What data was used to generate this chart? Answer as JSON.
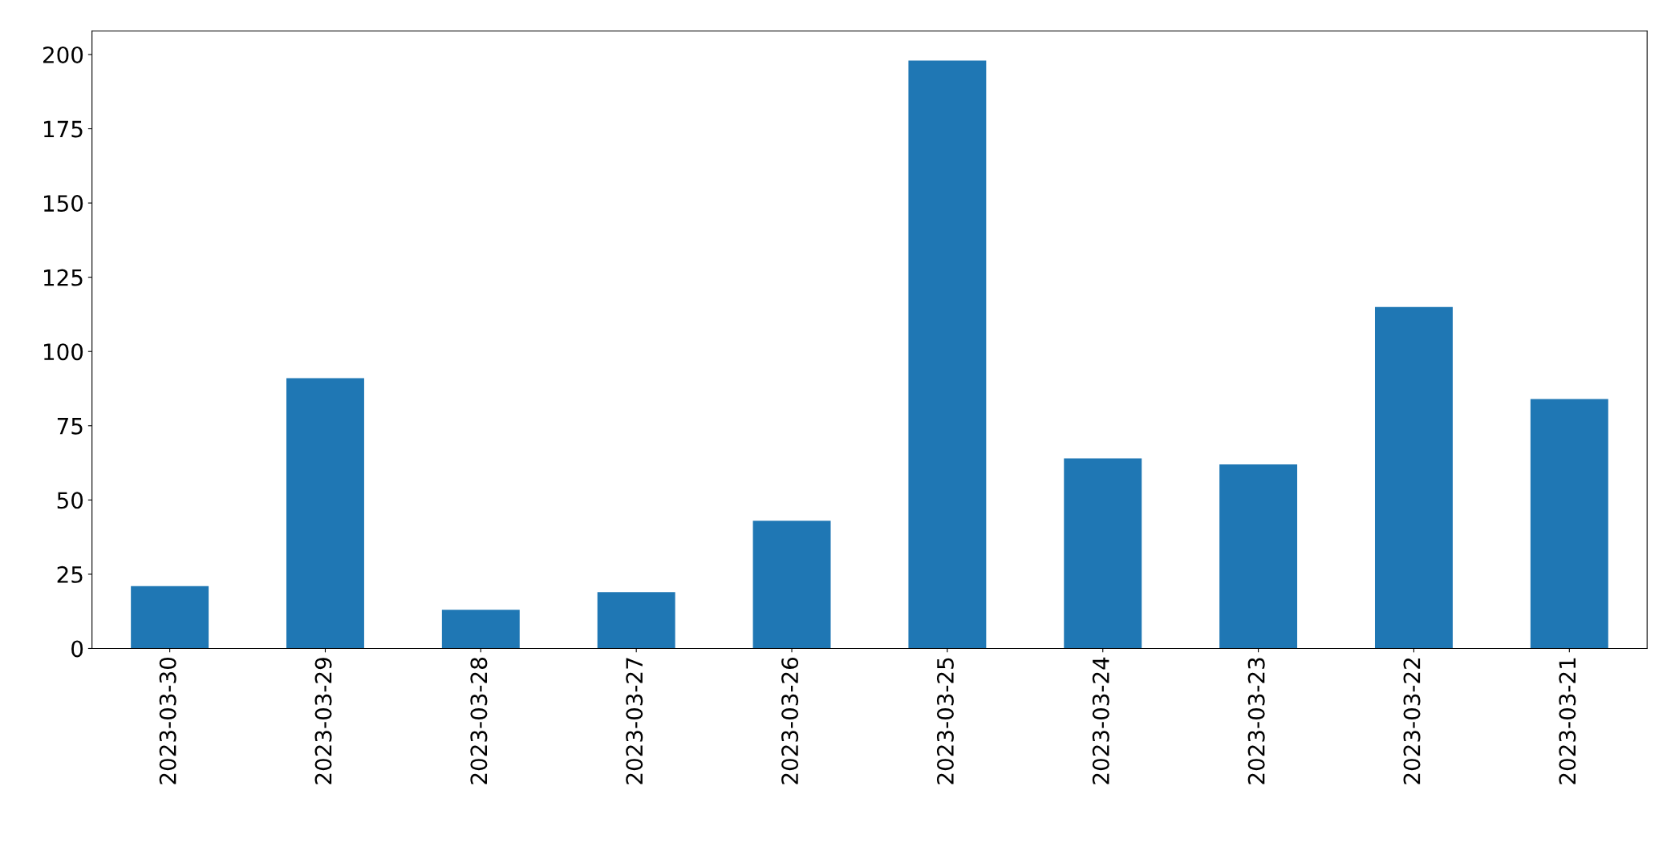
{
  "chart_data": {
    "type": "bar",
    "categories": [
      "2023-03-30",
      "2023-03-29",
      "2023-03-28",
      "2023-03-27",
      "2023-03-26",
      "2023-03-25",
      "2023-03-24",
      "2023-03-23",
      "2023-03-22",
      "2023-03-21"
    ],
    "values": [
      21,
      91,
      13,
      19,
      43,
      198,
      64,
      62,
      115,
      84
    ],
    "color": "#1f77b4",
    "ylim": [
      0,
      207.9
    ],
    "yticks": [
      0,
      25,
      50,
      75,
      100,
      125,
      150,
      175,
      200
    ],
    "grid": false,
    "legend": false
  }
}
